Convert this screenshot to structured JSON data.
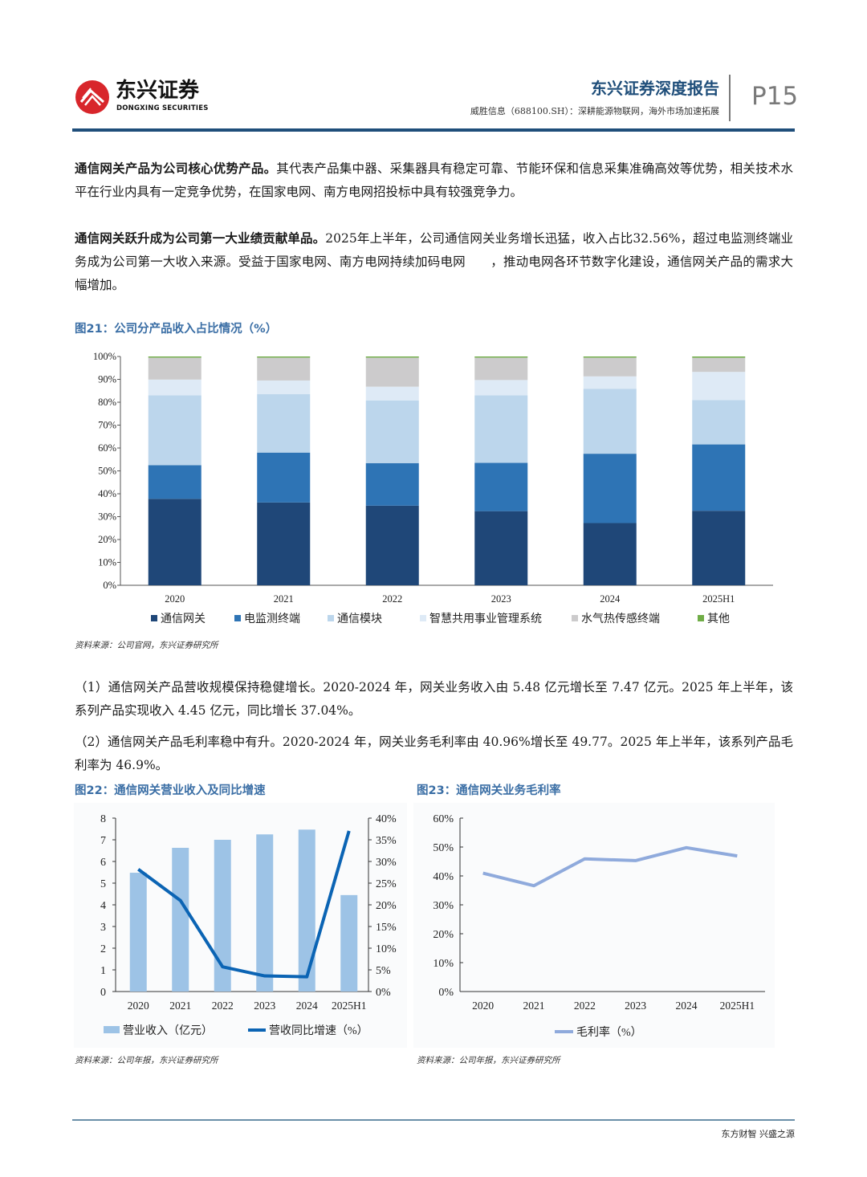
{
  "header": {
    "logo_cn": "东兴证券",
    "logo_en": "DONGXING SECURITIES",
    "report_title": "东兴证券深度报告",
    "report_subtitle": "威胜信息（688100.SH）：深耕能源物联网，海外市场加速拓展",
    "page_number": "P15"
  },
  "paragraphs": [
    {
      "bold": "通信网关产品为公司核心优势产品。",
      "text": "其代表产品集中器、采集器具有稳定可靠、节能环保和信息采集准确高效等优势，相关技术水平在行业内具有一定竞争优势，在国家电网、南方电网招投标中具有较强竞争力。"
    },
    {
      "bold": "通信网关跃升成为公司第一大业绩贡献单品。",
      "text": "2025年上半年，公司通信网关业务增长迅猛，收入占比32.56%，超过电监测终端业务成为公司第一大收入来源。受益于国家电网、南方电网持续加码电网　　，推动电网各环节数字化建设，通信网关产品的需求大幅增加。"
    },
    {
      "bold": "",
      "text": "（1）通信网关产品营收规模保持稳健增长。2020-2024 年，网关业务收入由 5.48 亿元增长至 7.47 亿元。2025 年上半年，该系列产品实现收入 4.45 亿元，同比增长 37.04%。"
    },
    {
      "bold": "",
      "text": "（2）通信网关产品毛利率稳中有升。2020-2024 年，网关业务毛利率由 40.96%增长至 49.77。2025 年上半年，该系列产品毛利率为 46.9%。"
    }
  ],
  "figures": {
    "fig21": {
      "title": "图21：公司分产品收入占比情况（%）",
      "source": "资料来源：公司官网，东兴证券研究所"
    },
    "fig22": {
      "title": "图22：通信网关营业收入及同比增速",
      "source": "资料来源：公司年报，东兴证券研究所"
    },
    "fig23": {
      "title": "图23：通信网关业务毛利率",
      "source": "资料来源：公司年报，东兴证券研究所"
    }
  },
  "footer": {
    "slogan": "东方财智 兴盛之源"
  },
  "colors": {
    "brand_blue": "#1f4e7a",
    "fig_title_blue": "#3a6ea5",
    "logo_red": "#d8262b"
  },
  "chart_data": [
    {
      "id": "fig21",
      "type": "bar",
      "stacked": true,
      "title": "图21：公司分产品收入占比情况（%）",
      "categories": [
        "2020",
        "2021",
        "2022",
        "2023",
        "2024",
        "2025H1"
      ],
      "ylim": [
        0,
        100
      ],
      "yticks": [
        "0%",
        "10%",
        "20%",
        "30%",
        "40%",
        "50%",
        "60%",
        "70%",
        "80%",
        "90%",
        "100%"
      ],
      "legend_position": "bottom",
      "series": [
        {
          "name": "通信网关",
          "color": "#1f4778",
          "values": [
            37.8,
            36.2,
            34.8,
            32.4,
            27.2,
            32.56
          ]
        },
        {
          "name": "电监测终端",
          "color": "#2e74b5",
          "values": [
            14.7,
            21.8,
            18.6,
            21.1,
            30.3,
            29.0
          ]
        },
        {
          "name": "通信模块",
          "color": "#bcd6ec",
          "values": [
            30.5,
            25.5,
            27.4,
            29.5,
            28.4,
            19.4
          ]
        },
        {
          "name": "智慧共用事业管理系统",
          "color": "#deeaf6",
          "values": [
            6.9,
            6.0,
            6.0,
            6.7,
            5.4,
            12.3
          ]
        },
        {
          "name": "水气热传感终端",
          "color": "#cccbcc",
          "values": [
            9.6,
            10.0,
            12.7,
            9.8,
            8.2,
            6.2
          ]
        },
        {
          "name": "其他",
          "color": "#70ad47",
          "values": [
            0.5,
            0.5,
            0.5,
            0.5,
            0.5,
            0.54
          ]
        }
      ]
    },
    {
      "id": "fig22",
      "type": "bar",
      "title": "图22：通信网关营业收入及同比增速",
      "categories": [
        "2020",
        "2021",
        "2022",
        "2023",
        "2024",
        "2025H1"
      ],
      "ylim": [
        0,
        8
      ],
      "yticks": [
        "0",
        "1",
        "2",
        "3",
        "4",
        "5",
        "6",
        "7",
        "8"
      ],
      "y2lim": [
        0,
        40
      ],
      "y2ticks": [
        "0%",
        "5%",
        "10%",
        "15%",
        "20%",
        "25%",
        "30%",
        "35%",
        "40%"
      ],
      "legend_position": "bottom",
      "series": [
        {
          "name": "营业收入（亿元）",
          "type": "bar",
          "axis": "left",
          "color": "#9dc3e6",
          "values": [
            5.48,
            6.63,
            7.0,
            7.25,
            7.47,
            4.45
          ]
        },
        {
          "name": "营收同比增速（%）",
          "type": "line",
          "axis": "right",
          "color": "#0b64b4",
          "values": [
            28.2,
            21.0,
            5.7,
            3.6,
            3.4,
            37.04
          ]
        }
      ]
    },
    {
      "id": "fig23",
      "type": "line",
      "title": "图23：通信网关业务毛利率",
      "categories": [
        "2020",
        "2021",
        "2022",
        "2023",
        "2024",
        "2025H1"
      ],
      "ylim": [
        0,
        60
      ],
      "yticks": [
        "0%",
        "10%",
        "20%",
        "30%",
        "40%",
        "50%",
        "60%"
      ],
      "legend_position": "bottom",
      "series": [
        {
          "name": "毛利率（%）",
          "color": "#8faadc",
          "values": [
            40.96,
            36.6,
            45.9,
            45.3,
            49.77,
            46.9
          ]
        }
      ]
    }
  ]
}
